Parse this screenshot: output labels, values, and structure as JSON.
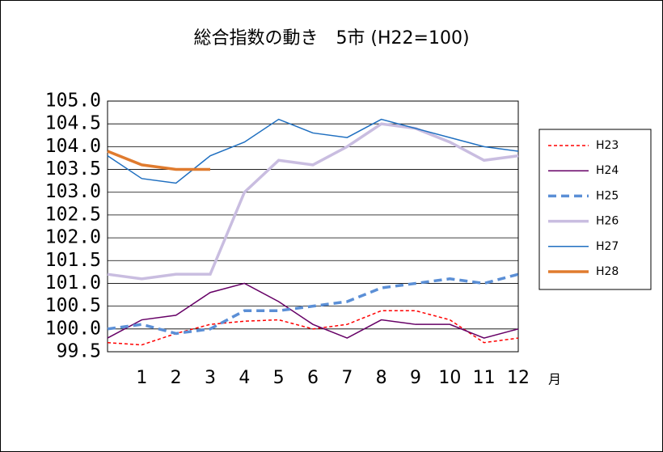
{
  "chart_data": {
    "type": "line",
    "title": "総合指数の動き　5市 (H22=100)",
    "x_label": "月",
    "x": [
      0,
      1,
      2,
      3,
      4,
      5,
      6,
      7,
      8,
      9,
      10,
      11,
      12
    ],
    "xlim": [
      0,
      12
    ],
    "xticks": [
      1,
      2,
      3,
      4,
      5,
      6,
      7,
      8,
      9,
      10,
      11,
      12
    ],
    "ylim": [
      99.5,
      105
    ],
    "yticks": [
      99.5,
      {
        "value": 100,
        "label": "100.0"
      },
      100.5,
      {
        "value": 101,
        "label": "101.0"
      },
      101.5,
      {
        "value": 102,
        "label": "102.0"
      },
      102.5,
      {
        "value": 103,
        "label": "103.0"
      },
      103.5,
      {
        "value": 104,
        "label": "104.0"
      },
      104.5,
      {
        "value": 105,
        "label": "105.0"
      }
    ],
    "grid": true,
    "legend": "right",
    "series": [
      {
        "name": "H23",
        "color": "#ff0000",
        "line_style": "dashed",
        "line_width": 1.5,
        "values": [
          99.7,
          99.65,
          99.9,
          100.1,
          100.17,
          100.2,
          100.0,
          100.1,
          100.4,
          100.4,
          100.2,
          99.7,
          99.8
        ]
      },
      {
        "name": "H24",
        "color": "#660066",
        "line_style": "solid",
        "line_width": 1.5,
        "values": [
          99.8,
          100.2,
          100.3,
          100.8,
          101.0,
          100.6,
          100.1,
          99.8,
          100.2,
          100.1,
          100.1,
          99.8,
          100.0
        ]
      },
      {
        "name": "H25",
        "color": "#5b8fd6",
        "line_style": "dashed-wide",
        "line_width": 3.5,
        "values": [
          100.0,
          100.1,
          99.9,
          100.0,
          100.4,
          100.4,
          100.5,
          100.6,
          100.9,
          101.0,
          101.1,
          101.0,
          101.2
        ]
      },
      {
        "name": "H26",
        "color": "#c9bde0",
        "line_style": "solid",
        "line_width": 3.5,
        "values": [
          101.2,
          101.1,
          101.2,
          101.2,
          103.0,
          103.7,
          103.6,
          104.0,
          104.5,
          104.4,
          104.1,
          103.7,
          103.8
        ]
      },
      {
        "name": "H27",
        "color": "#1f6fc0",
        "line_style": "solid",
        "line_width": 1.5,
        "values": [
          103.8,
          103.3,
          103.2,
          103.8,
          104.1,
          104.6,
          104.3,
          104.2,
          104.6,
          104.4,
          104.2,
          104.0,
          103.9
        ]
      },
      {
        "name": "H28",
        "color": "#e07b2e",
        "line_style": "solid",
        "line_width": 3.5,
        "values": [
          103.9,
          103.6,
          103.5,
          103.5,
          null,
          null,
          null,
          null,
          null,
          null,
          null,
          null,
          null
        ]
      }
    ]
  }
}
